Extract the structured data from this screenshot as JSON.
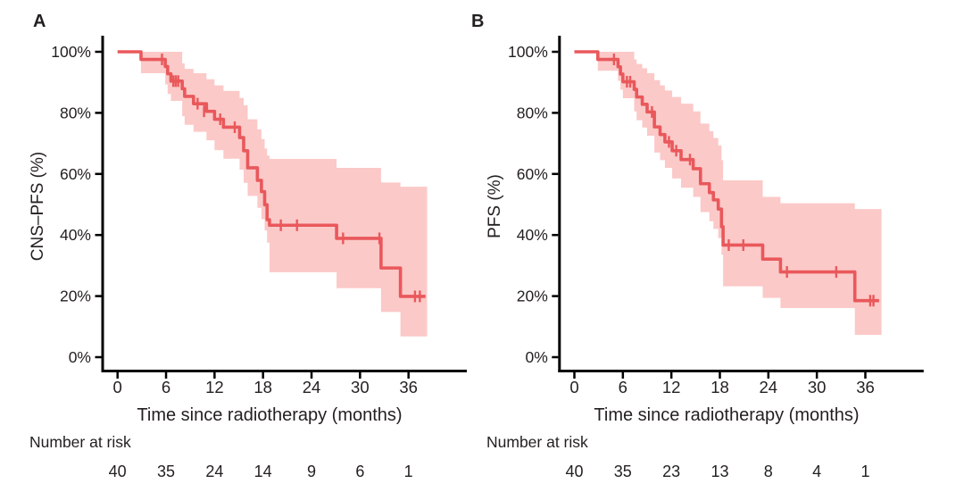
{
  "background": "#ffffff",
  "text_color": "#231f20",
  "axis_color": "#000000",
  "chart_data": [
    {
      "type": "line",
      "subtype": "kaplan-meier-step",
      "panel_label": "A",
      "ylabel": "CNS–PFS (%)",
      "xlabel": "Time since radiotherapy (months)",
      "xticks": [
        0,
        6,
        12,
        18,
        24,
        30,
        36
      ],
      "ytick_values": [
        0,
        20,
        40,
        60,
        80,
        100
      ],
      "ytick_labels": [
        "0%",
        "20%",
        "40%",
        "60%",
        "80%",
        "100%"
      ],
      "xlim": [
        0,
        43
      ],
      "ylim": [
        0,
        100
      ],
      "grid": false,
      "legend": "none",
      "line_color": "#e9585b",
      "band_color": "#fbc9c8",
      "steps": [
        [
          0,
          100
        ],
        [
          2.9,
          97.5
        ],
        [
          5.9,
          95.2
        ],
        [
          6.2,
          92.8
        ],
        [
          6.6,
          90.4
        ],
        [
          8.0,
          87.9
        ],
        [
          8.3,
          85.4
        ],
        [
          9.4,
          83.0
        ],
        [
          11.0,
          80.5
        ],
        [
          12.0,
          77.9
        ],
        [
          13.1,
          75.3
        ],
        [
          15.1,
          71.9
        ],
        [
          15.6,
          67.6
        ],
        [
          16.1,
          62.0
        ],
        [
          17.3,
          57.9
        ],
        [
          17.8,
          54.2
        ],
        [
          18.2,
          49.9
        ],
        [
          18.5,
          45.0
        ],
        [
          18.8,
          43.2
        ],
        [
          27.1,
          38.9
        ],
        [
          32.6,
          29.2
        ],
        [
          35.0,
          19.9
        ]
      ],
      "end_time": 38.1,
      "censors": [
        [
          5.5,
          97.5
        ],
        [
          6.9,
          90.4
        ],
        [
          7.2,
          90.4
        ],
        [
          7.5,
          90.4
        ],
        [
          9.9,
          83.0
        ],
        [
          10.7,
          80.5
        ],
        [
          12.7,
          77.9
        ],
        [
          14.5,
          75.3
        ],
        [
          20.2,
          43.2
        ],
        [
          22.2,
          43.2
        ],
        [
          27.9,
          38.9
        ],
        [
          32.4,
          38.9
        ],
        [
          36.8,
          19.9
        ],
        [
          37.4,
          19.9
        ]
      ],
      "band": [
        [
          2.9,
          93.0,
          100
        ],
        [
          5.9,
          89.3,
          100
        ],
        [
          6.2,
          86.2,
          100
        ],
        [
          6.6,
          83.9,
          100
        ],
        [
          8.0,
          78.9,
          96.2
        ],
        [
          8.3,
          76.1,
          94.4
        ],
        [
          9.4,
          73.8,
          93.0
        ],
        [
          11.0,
          71.0,
          91.0
        ],
        [
          12.0,
          67.8,
          89.0
        ],
        [
          13.1,
          65.0,
          87.2
        ],
        [
          15.1,
          61.4,
          84.9
        ],
        [
          15.6,
          57.1,
          82.5
        ],
        [
          16.1,
          52.8,
          77.9
        ],
        [
          17.3,
          48.9,
          74.6
        ],
        [
          17.8,
          45.2,
          71.4
        ],
        [
          18.2,
          41.5,
          68.3
        ],
        [
          18.5,
          37.5,
          66.0
        ],
        [
          18.8,
          27.8,
          64.9
        ],
        [
          27.1,
          22.6,
          62.0
        ],
        [
          32.6,
          14.8,
          57.2
        ],
        [
          35.0,
          6.8,
          55.8
        ]
      ],
      "band_end_time": 38.3,
      "number_at_risk": {
        "label": "Number at risk",
        "times": [
          0,
          6,
          12,
          18,
          24,
          30,
          36
        ],
        "counts": [
          "40",
          "35",
          "24",
          "14",
          "9",
          "6",
          "1"
        ]
      }
    },
    {
      "type": "line",
      "subtype": "kaplan-meier-step",
      "panel_label": "B",
      "ylabel": "PFS (%)",
      "xlabel": "Time since radiotherapy (months)",
      "xticks": [
        0,
        6,
        12,
        18,
        24,
        30,
        36
      ],
      "ytick_values": [
        0,
        20,
        40,
        60,
        80,
        100
      ],
      "ytick_labels": [
        "0%",
        "20%",
        "40%",
        "60%",
        "80%",
        "100%"
      ],
      "xlim": [
        0,
        43
      ],
      "ylim": [
        0,
        100
      ],
      "grid": false,
      "legend": "none",
      "line_color": "#e9585b",
      "band_color": "#fbc9c8",
      "steps": [
        [
          0,
          100
        ],
        [
          2.9,
          97.5
        ],
        [
          5.4,
          95.1
        ],
        [
          5.7,
          92.7
        ],
        [
          6.0,
          90.2
        ],
        [
          7.4,
          87.7
        ],
        [
          7.7,
          85.2
        ],
        [
          8.4,
          82.8
        ],
        [
          9.0,
          80.3
        ],
        [
          9.9,
          75.4
        ],
        [
          10.6,
          72.9
        ],
        [
          11.2,
          70.5
        ],
        [
          12.1,
          67.6
        ],
        [
          13.2,
          64.7
        ],
        [
          14.7,
          61.7
        ],
        [
          15.6,
          56.8
        ],
        [
          16.7,
          53.9
        ],
        [
          17.2,
          51.5
        ],
        [
          17.8,
          48.5
        ],
        [
          18.2,
          42.7
        ],
        [
          18.4,
          36.7
        ],
        [
          23.3,
          32.1
        ],
        [
          25.5,
          27.9
        ],
        [
          34.7,
          18.5
        ]
      ],
      "end_time": 37.7,
      "censors": [
        [
          4.9,
          97.5
        ],
        [
          6.5,
          90.2
        ],
        [
          6.9,
          90.2
        ],
        [
          9.6,
          80.3
        ],
        [
          11.7,
          70.5
        ],
        [
          12.6,
          67.6
        ],
        [
          14.3,
          64.7
        ],
        [
          19.1,
          36.7
        ],
        [
          20.9,
          36.7
        ],
        [
          26.3,
          27.9
        ],
        [
          32.4,
          27.9
        ],
        [
          36.6,
          18.5
        ],
        [
          37.0,
          18.5
        ]
      ],
      "band": [
        [
          2.9,
          93.8,
          100
        ],
        [
          5.4,
          90.5,
          100
        ],
        [
          5.7,
          87.6,
          100
        ],
        [
          6.0,
          84.8,
          100
        ],
        [
          7.4,
          80.5,
          97.5
        ],
        [
          7.7,
          77.6,
          96.0
        ],
        [
          8.4,
          75.2,
          94.6
        ],
        [
          9.0,
          72.5,
          93.0
        ],
        [
          9.9,
          67.0,
          90.7
        ],
        [
          10.6,
          64.5,
          89.0
        ],
        [
          11.2,
          62.0,
          87.3
        ],
        [
          12.1,
          58.5,
          85.2
        ],
        [
          13.2,
          55.5,
          83.0
        ],
        [
          14.7,
          52.5,
          80.5
        ],
        [
          15.6,
          47.5,
          76.5
        ],
        [
          16.7,
          44.5,
          74.0
        ],
        [
          17.2,
          42.0,
          71.8
        ],
        [
          17.8,
          39.0,
          69.3
        ],
        [
          18.2,
          33.5,
          64.5
        ],
        [
          18.4,
          23.2,
          57.9
        ],
        [
          23.3,
          19.4,
          52.5
        ],
        [
          25.5,
          16.1,
          50.4
        ],
        [
          34.7,
          7.3,
          48.5
        ]
      ],
      "band_end_time": 38.0,
      "number_at_risk": {
        "label": "Number at risk",
        "times": [
          0,
          6,
          12,
          18,
          24,
          30,
          36
        ],
        "counts": [
          "40",
          "35",
          "23",
          "13",
          "8",
          "4",
          "1"
        ]
      }
    }
  ]
}
